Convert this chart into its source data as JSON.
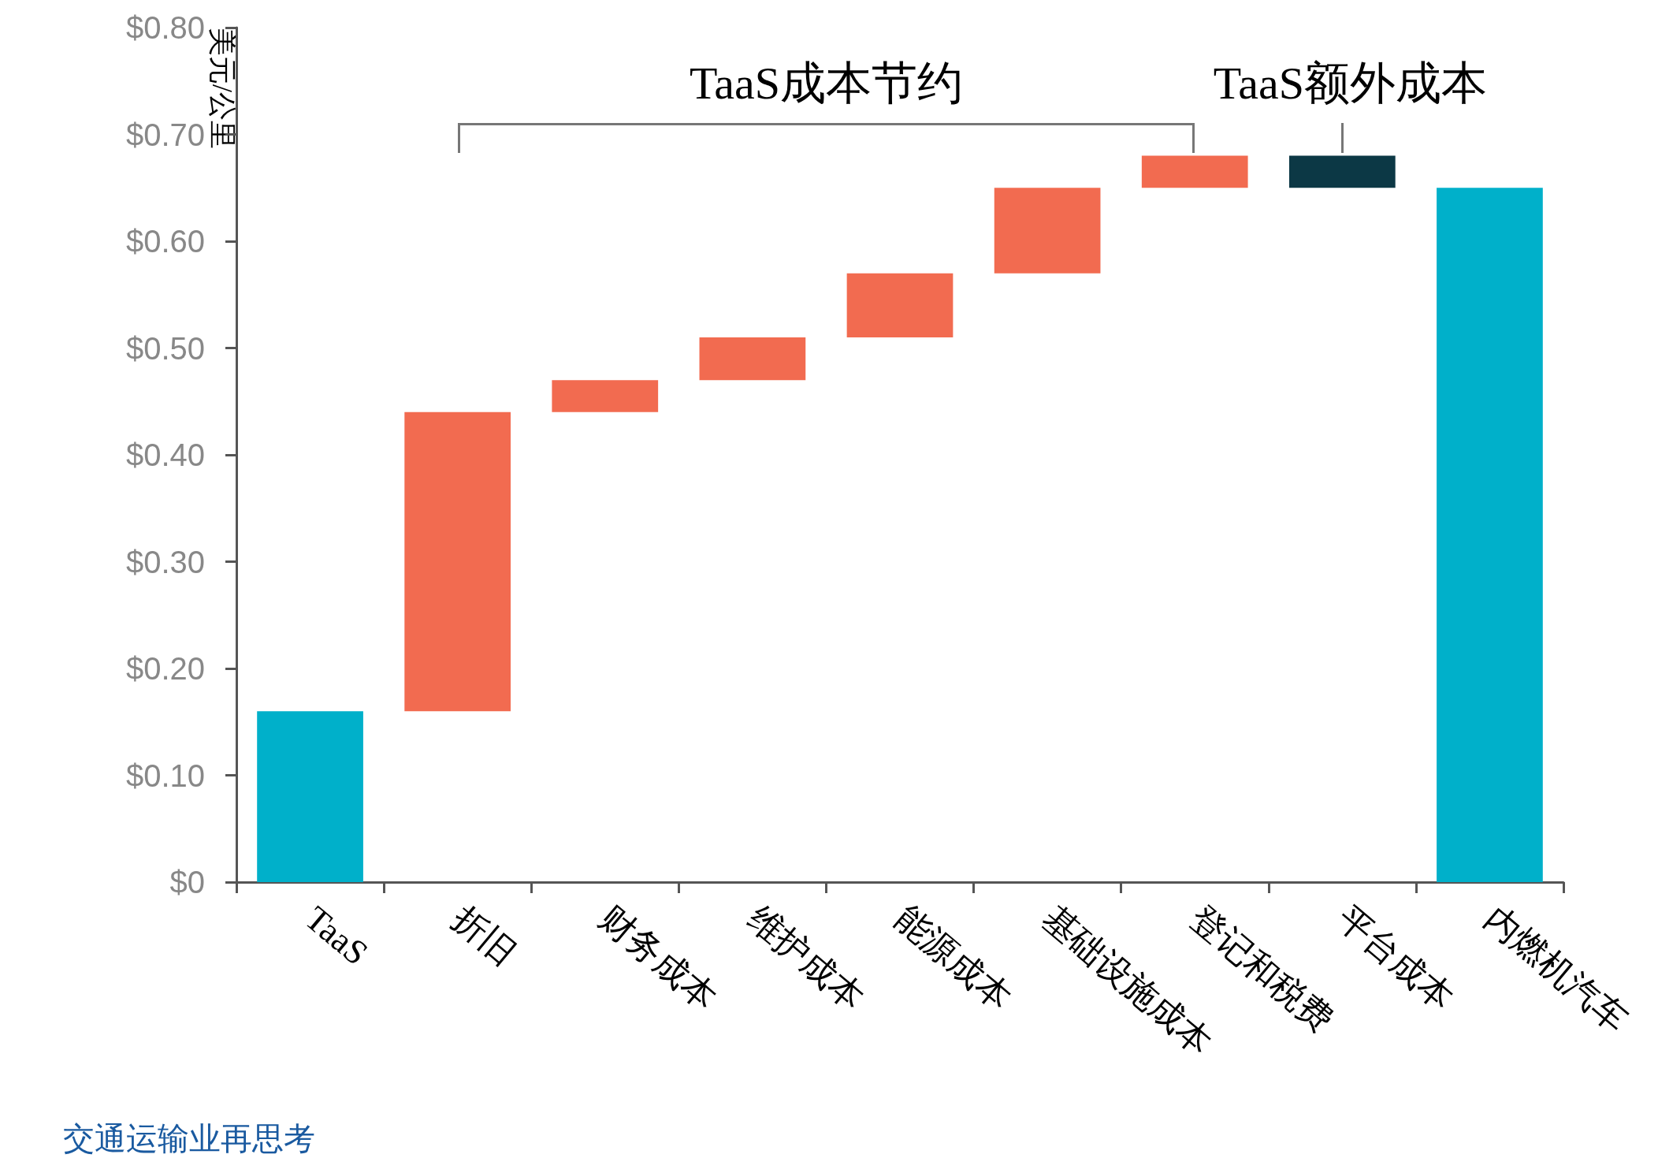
{
  "chart_data": {
    "type": "bar",
    "categories": [
      "TaaS",
      "折旧",
      "财务成本",
      "维护成本",
      "能源成本",
      "基础设施成本",
      "登记和税费",
      "平台成本",
      "内燃机汽车"
    ],
    "values": [
      0.16,
      0.28,
      0.03,
      0.04,
      0.06,
      0.08,
      0.03,
      0.03,
      0.65
    ],
    "base": [
      0,
      0.16,
      0.44,
      0.47,
      0.51,
      0.57,
      0.65,
      0.65,
      0
    ],
    "colors": [
      "#00b0ca",
      "#f26b50",
      "#f26b50",
      "#f26b50",
      "#f26b50",
      "#f26b50",
      "#f26b50",
      "#0c3845",
      "#00b0ca"
    ],
    "ylabel": "美元/公里",
    "ylim": [
      0,
      0.8
    ],
    "yticks": [
      {
        "value": 0,
        "label": "$0"
      },
      {
        "value": 0.1,
        "label": "$0.10"
      },
      {
        "value": 0.2,
        "label": "$0.20"
      },
      {
        "value": 0.3,
        "label": "$0.30"
      },
      {
        "value": 0.4,
        "label": "$0.40"
      },
      {
        "value": 0.5,
        "label": "$0.50"
      },
      {
        "value": 0.6,
        "label": "$0.60"
      },
      {
        "value": 0.7,
        "label": "$0.70"
      },
      {
        "value": 0.8,
        "label": "$0.80"
      }
    ],
    "grid": false,
    "annotations": [
      "TaaS成本节约",
      "TaaS额外成本",
      "交通运输业再思考"
    ]
  }
}
